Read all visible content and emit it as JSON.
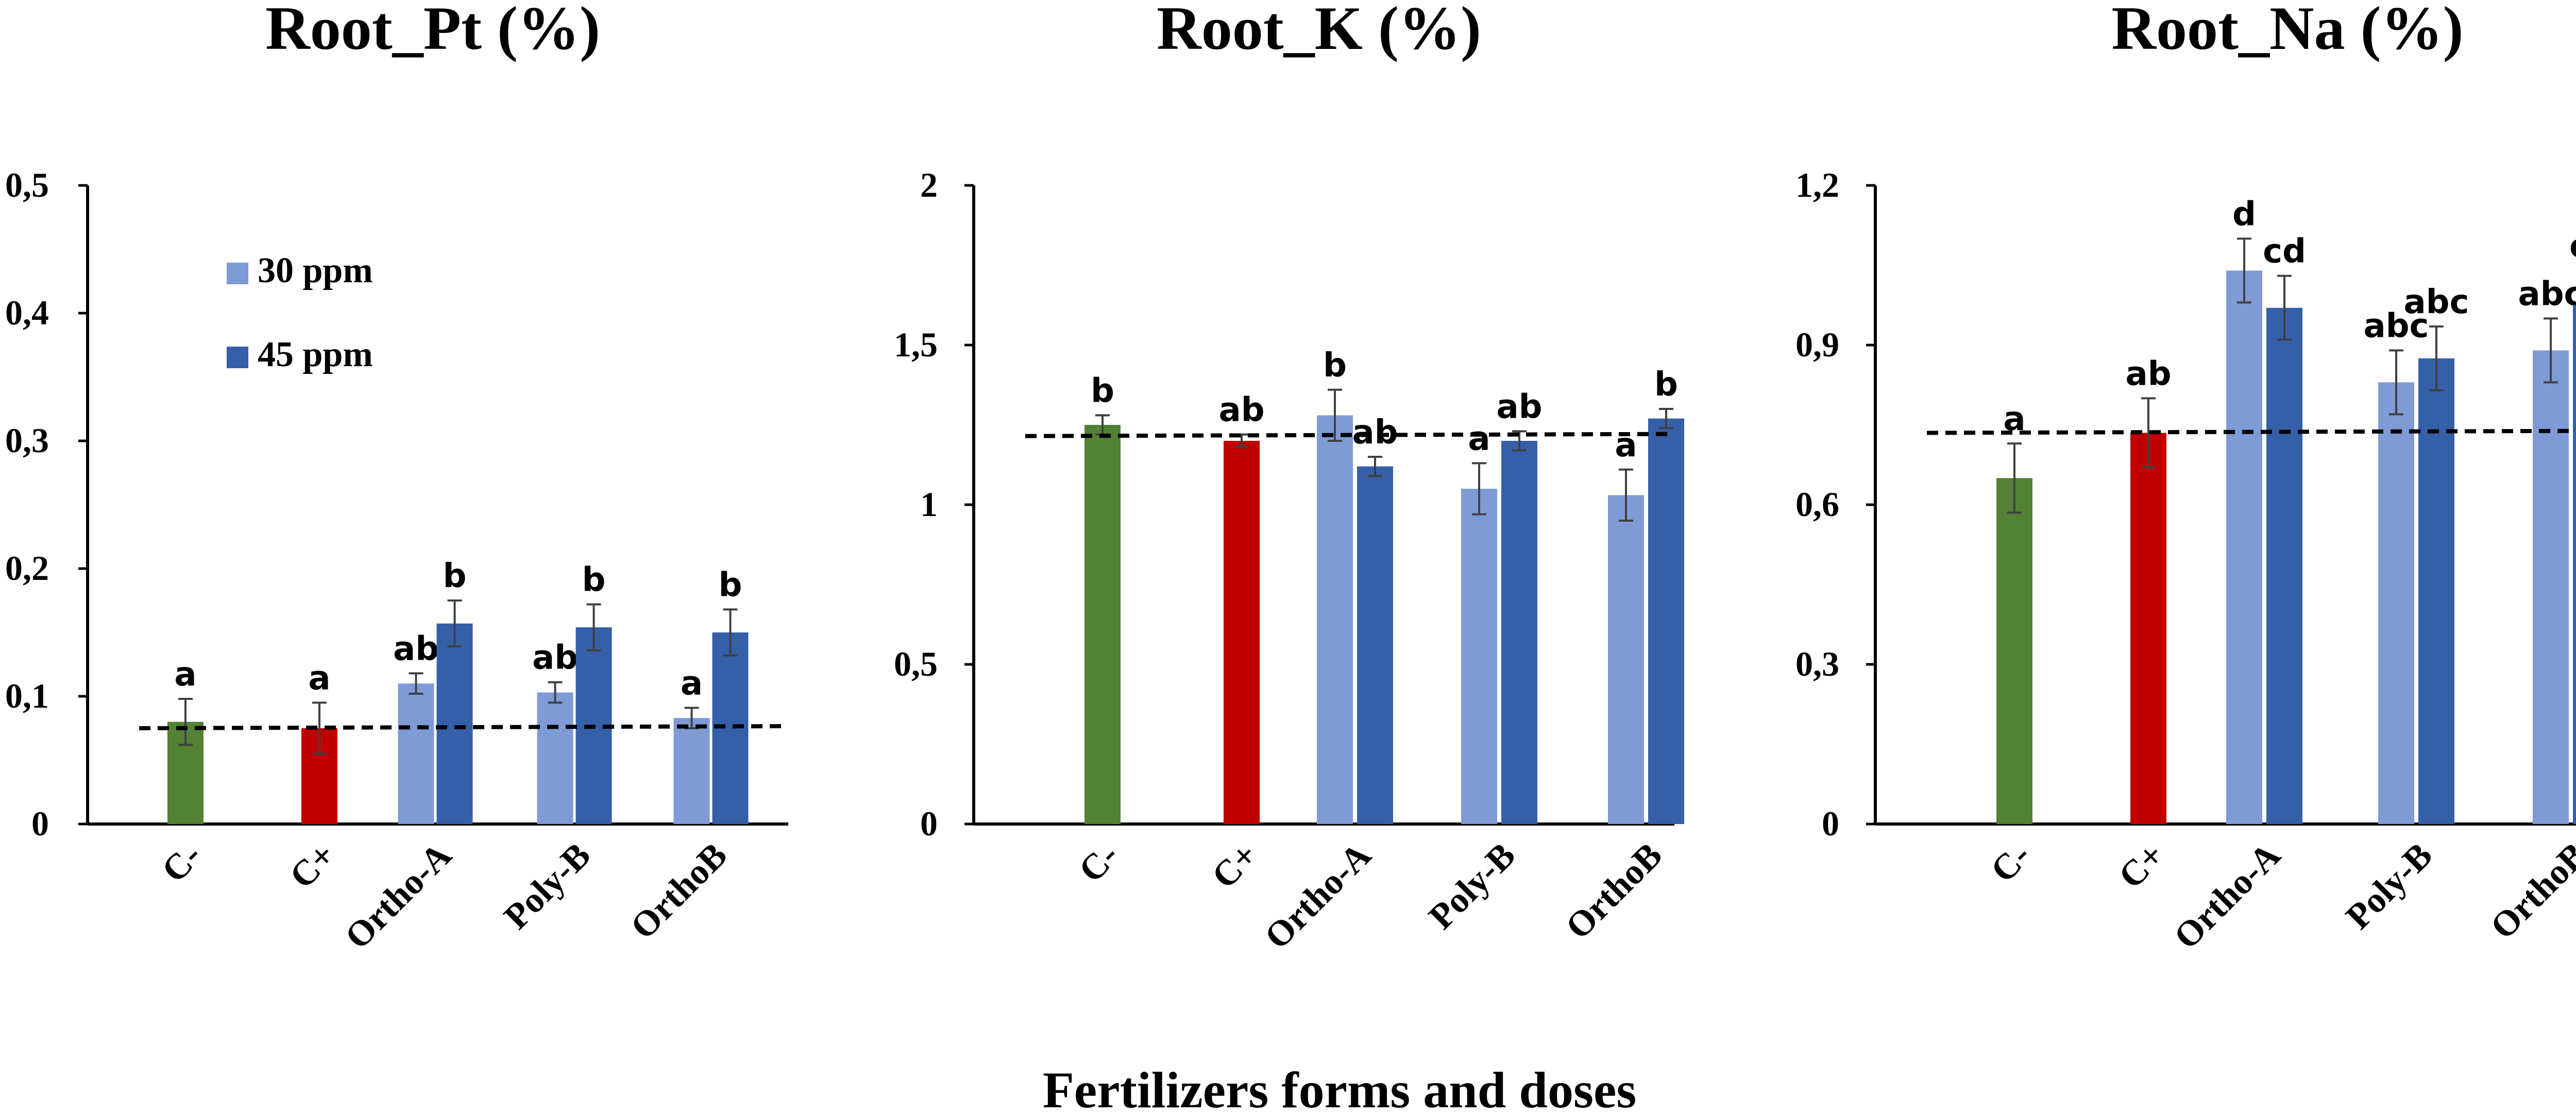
{
  "xlabel": "Fertilizers forms and doses",
  "legend": [
    {
      "label": "30 ppm",
      "color": "#7f9bd6"
    },
    {
      "label": "45 ppm",
      "color": "#3560a8"
    }
  ],
  "colors": {
    "c_minus": "#538135",
    "c_plus": "#c00000",
    "ppm30": "#7f9bd6",
    "ppm45": "#3560a8"
  },
  "chart_data": [
    {
      "type": "bar",
      "title": "Root_Pt (%)",
      "categories": [
        "C-",
        "C+",
        "Ortho-A",
        "Poly-B",
        "OrthoB"
      ],
      "ylim": [
        0,
        0.5
      ],
      "yticks": [
        "0",
        "0,1",
        "0,2",
        "0,3",
        "0,4",
        "0,5"
      ],
      "reference_line": 0.075,
      "bars": [
        {
          "category": "C-",
          "series": "control",
          "value": 0.08,
          "error": 0.018,
          "label": "a"
        },
        {
          "category": "C+",
          "series": "control",
          "value": 0.075,
          "error": 0.02,
          "label": "a"
        },
        {
          "category": "Ortho-A",
          "series": "30 ppm",
          "value": 0.11,
          "error": 0.008,
          "label": "ab"
        },
        {
          "category": "Ortho-A",
          "series": "45 ppm",
          "value": 0.157,
          "error": 0.018,
          "label": "b"
        },
        {
          "category": "Poly-B",
          "series": "30 ppm",
          "value": 0.103,
          "error": 0.008,
          "label": "ab"
        },
        {
          "category": "Poly-B",
          "series": "45 ppm",
          "value": 0.154,
          "error": 0.018,
          "label": "b"
        },
        {
          "category": "OrthoB",
          "series": "30 ppm",
          "value": 0.083,
          "error": 0.008,
          "label": "a"
        },
        {
          "category": "OrthoB",
          "series": "45 ppm",
          "value": 0.15,
          "error": 0.018,
          "label": "b"
        }
      ]
    },
    {
      "type": "bar",
      "title": "Root_K (%)",
      "categories": [
        "C-",
        "C+",
        "Ortho-A",
        "Poly-B",
        "OrthoB"
      ],
      "ylim": [
        0,
        2
      ],
      "yticks": [
        "0",
        "0,5",
        "1",
        "1,5",
        "2"
      ],
      "reference_line": 1.215,
      "bars": [
        {
          "category": "C-",
          "series": "control",
          "value": 1.25,
          "error": 0.03,
          "label": "b"
        },
        {
          "category": "C+",
          "series": "control",
          "value": 1.2,
          "error": 0.02,
          "label": "ab"
        },
        {
          "category": "Ortho-A",
          "series": "30 ppm",
          "value": 1.28,
          "error": 0.08,
          "label": "b"
        },
        {
          "category": "Ortho-A",
          "series": "45 ppm",
          "value": 1.12,
          "error": 0.03,
          "label": "ab"
        },
        {
          "category": "Poly-B",
          "series": "30 ppm",
          "value": 1.05,
          "error": 0.08,
          "label": "a"
        },
        {
          "category": "Poly-B",
          "series": "45 ppm",
          "value": 1.2,
          "error": 0.03,
          "label": "ab"
        },
        {
          "category": "OrthoB",
          "series": "30 ppm",
          "value": 1.03,
          "error": 0.08,
          "label": "a"
        },
        {
          "category": "OrthoB",
          "series": "45 ppm",
          "value": 1.27,
          "error": 0.03,
          "label": "b"
        }
      ]
    },
    {
      "type": "bar",
      "title": "Root_Na (%)",
      "categories": [
        "C-",
        "C+",
        "Ortho-A",
        "Poly-B",
        "OrthoB"
      ],
      "ylim": [
        0,
        1.2
      ],
      "yticks": [
        "0",
        "0,3",
        "0,6",
        "0,9",
        "1,2"
      ],
      "reference_line": 0.735,
      "bars": [
        {
          "category": "C-",
          "series": "control",
          "value": 0.65,
          "error": 0.065,
          "label": "a"
        },
        {
          "category": "C+",
          "series": "control",
          "value": 0.735,
          "error": 0.065,
          "label": "ab"
        },
        {
          "category": "Ortho-A",
          "series": "30 ppm",
          "value": 1.04,
          "error": 0.06,
          "label": "d"
        },
        {
          "category": "Ortho-A",
          "series": "45 ppm",
          "value": 0.97,
          "error": 0.06,
          "label": "cd"
        },
        {
          "category": "Poly-B",
          "series": "30 ppm",
          "value": 0.83,
          "error": 0.06,
          "label": "abc"
        },
        {
          "category": "Poly-B",
          "series": "45 ppm",
          "value": 0.875,
          "error": 0.06,
          "label": "abc"
        },
        {
          "category": "OrthoB",
          "series": "30 ppm",
          "value": 0.89,
          "error": 0.06,
          "label": "abc"
        },
        {
          "category": "OrthoB",
          "series": "45 ppm",
          "value": 0.975,
          "error": 0.065,
          "label": "cd"
        }
      ]
    }
  ]
}
